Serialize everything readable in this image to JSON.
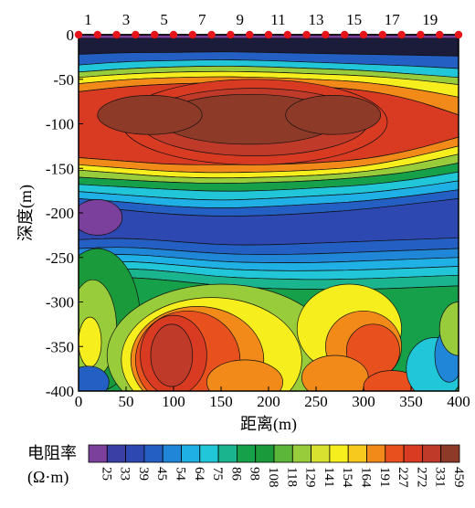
{
  "chart_data": {
    "type": "heatmap",
    "title": "",
    "xlabel": "距离(m)",
    "ylabel": "深度(m)",
    "xlim": [
      0,
      400
    ],
    "ylim": [
      -400,
      0
    ],
    "x_ticks": [
      0,
      50,
      100,
      150,
      200,
      250,
      300,
      350,
      400
    ],
    "y_ticks": [
      0,
      -50,
      -100,
      -150,
      -200,
      -250,
      -300,
      -350,
      -400
    ],
    "electrodes": {
      "labels": [
        "1",
        "3",
        "5",
        "7",
        "9",
        "11",
        "13",
        "15",
        "17",
        "19"
      ],
      "label_positions_m": [
        10,
        50,
        90,
        130,
        170,
        210,
        250,
        290,
        330,
        370
      ],
      "marker_positions_m": [
        0,
        20,
        40,
        60,
        80,
        100,
        120,
        140,
        160,
        180,
        200,
        220,
        240,
        260,
        280,
        300,
        320,
        340,
        360,
        380,
        400
      ],
      "marker_color": "#e8141b"
    },
    "colorbar": {
      "title_line1": "电阻率",
      "title_line2": "(Ω·m)",
      "values": [
        "25",
        "33",
        "39",
        "45",
        "54",
        "64",
        "75",
        "86",
        "98",
        "108",
        "118",
        "129",
        "141",
        "154",
        "164",
        "191",
        "227",
        "272",
        "331",
        "459"
      ],
      "colors": [
        "#7b3f9c",
        "#3a3fa6",
        "#2d48b0",
        "#245fc4",
        "#1f86d8",
        "#1fb0e6",
        "#21c6d8",
        "#1ab58f",
        "#17a04a",
        "#1a9a3a",
        "#5cb63a",
        "#98cc3a",
        "#d8e030",
        "#f7ee1e",
        "#f7c81e",
        "#f28a1a",
        "#e8501e",
        "#d83a22",
        "#c03a2a",
        "#8e3a28"
      ]
    }
  }
}
